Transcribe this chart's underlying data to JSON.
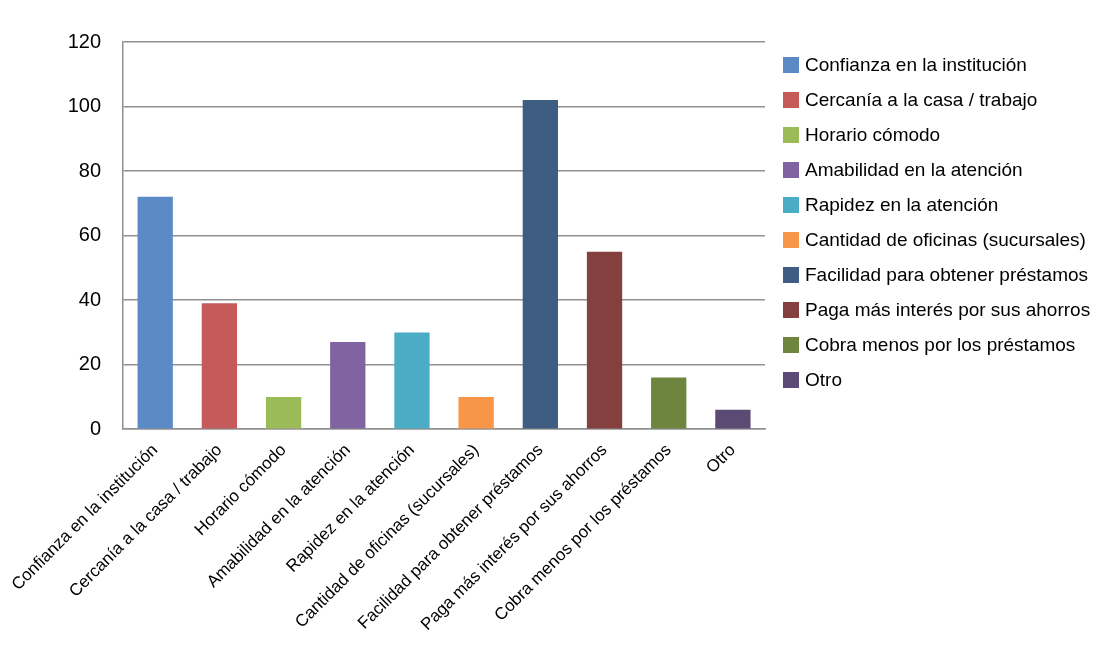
{
  "chart_data": {
    "type": "bar",
    "categories": [
      "Confianza en la institución",
      "Cercanía a la casa / trabajo",
      "Horario cómodo",
      "Amabilidad en la atención",
      "Rapidez en la atención",
      "Cantidad de oficinas (sucursales)",
      "Facilidad para obtener préstamos",
      "Paga más interés por sus ahorros",
      "Cobra menos por los préstamos",
      "Otro"
    ],
    "series": [
      {
        "name": "Confianza en la institución",
        "color": "#5b8ac6",
        "values": [
          72,
          null,
          null,
          null,
          null,
          null,
          null,
          null,
          null,
          null
        ]
      },
      {
        "name": "Cercanía a la casa / trabajo",
        "color": "#c55a5a",
        "values": [
          null,
          39,
          null,
          null,
          null,
          null,
          null,
          null,
          null,
          null
        ]
      },
      {
        "name": "Horario cómodo",
        "color": "#9bbb59",
        "values": [
          null,
          null,
          10,
          null,
          null,
          null,
          null,
          null,
          null,
          null
        ]
      },
      {
        "name": "Amabilidad en la atención",
        "color": "#8064a2",
        "values": [
          null,
          null,
          null,
          27,
          null,
          null,
          null,
          null,
          null,
          null
        ]
      },
      {
        "name": "Rapidez en la atención",
        "color": "#4bacc6",
        "values": [
          null,
          null,
          null,
          null,
          30,
          null,
          null,
          null,
          null,
          null
        ]
      },
      {
        "name": "Cantidad de oficinas (sucursales)",
        "color": "#f79646",
        "values": [
          null,
          null,
          null,
          null,
          null,
          10,
          null,
          null,
          null,
          null
        ]
      },
      {
        "name": "Facilidad para obtener préstamos",
        "color": "#3f5d82",
        "values": [
          null,
          null,
          null,
          null,
          null,
          null,
          102,
          null,
          null,
          null
        ]
      },
      {
        "name": "Paga más interés por sus ahorros",
        "color": "#843f3f",
        "values": [
          null,
          null,
          null,
          null,
          null,
          null,
          null,
          55,
          null,
          null
        ]
      },
      {
        "name": "Cobra menos por los préstamos",
        "color": "#6e8540",
        "values": [
          null,
          null,
          null,
          null,
          null,
          null,
          null,
          null,
          16,
          null
        ]
      },
      {
        "name": "Otro",
        "color": "#5a4a74",
        "values": [
          null,
          null,
          null,
          null,
          null,
          null,
          null,
          null,
          null,
          6
        ]
      }
    ],
    "ylim": [
      0,
      120
    ],
    "yticks": [
      0,
      20,
      40,
      60,
      80,
      100,
      120
    ],
    "grid": "y",
    "legend": "right"
  }
}
